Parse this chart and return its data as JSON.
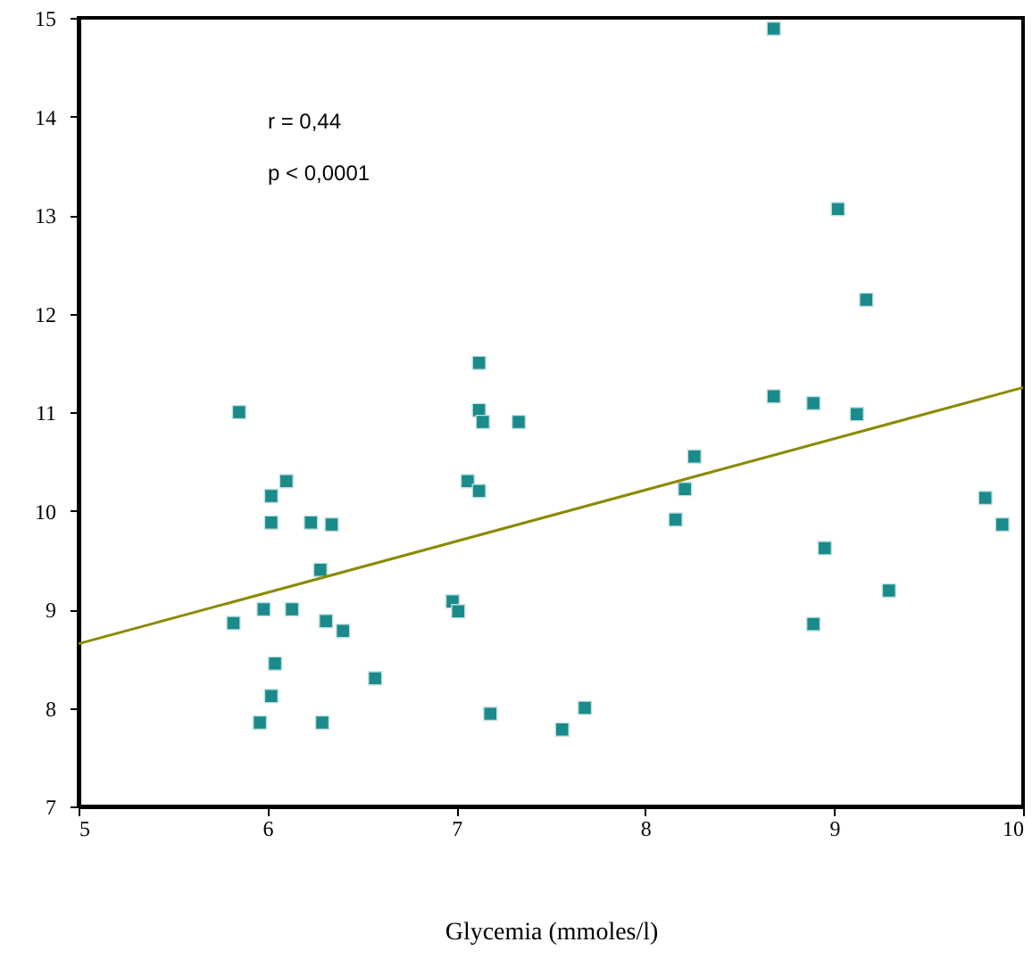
{
  "chart_data": {
    "type": "scatter",
    "xlabel": "Glycemia (mmoles/l)",
    "annotations": [
      "r = 0,44",
      "p < 0,0001"
    ],
    "xlim": [
      5,
      10
    ],
    "xticks": [
      5,
      6,
      7,
      8,
      9,
      10
    ],
    "ylim": [
      7,
      15
    ],
    "yticks": [
      7,
      8,
      9,
      10,
      11,
      12,
      13,
      14,
      15
    ],
    "grid": false,
    "series": [
      {
        "type": "scatter",
        "marker": "square",
        "color": "#1a8a8a",
        "x": [
          5.85,
          6.1,
          6.02,
          6.02,
          6.23,
          6.34,
          6.28,
          5.98,
          6.13,
          5.82,
          6.31,
          6.4,
          6.04,
          6.57,
          6.02,
          5.96,
          6.29,
          7.12,
          7.12,
          7.14,
          7.33,
          7.06,
          7.12,
          6.98,
          7.01,
          7.18,
          7.68,
          7.56,
          8.68,
          9.02,
          9.17,
          8.68,
          8.89,
          9.12,
          8.26,
          8.21,
          8.16,
          9.8,
          9.89,
          8.95,
          9.29,
          8.89
        ],
        "values": [
          11.0,
          10.3,
          10.15,
          9.88,
          9.88,
          9.86,
          9.4,
          9.0,
          9.0,
          8.86,
          8.88,
          8.78,
          8.45,
          8.3,
          8.12,
          7.85,
          7.85,
          11.5,
          11.02,
          10.9,
          10.9,
          10.3,
          10.2,
          9.08,
          8.98,
          7.94,
          8.0,
          7.78,
          14.89,
          13.06,
          12.14,
          11.16,
          11.09,
          10.98,
          10.55,
          10.22,
          9.91,
          10.13,
          9.86,
          9.62,
          9.19,
          8.85
        ]
      },
      {
        "type": "line",
        "color": "#8a8a00",
        "x": [
          5,
          10
        ],
        "values": [
          8.65,
          11.25
        ]
      }
    ]
  }
}
